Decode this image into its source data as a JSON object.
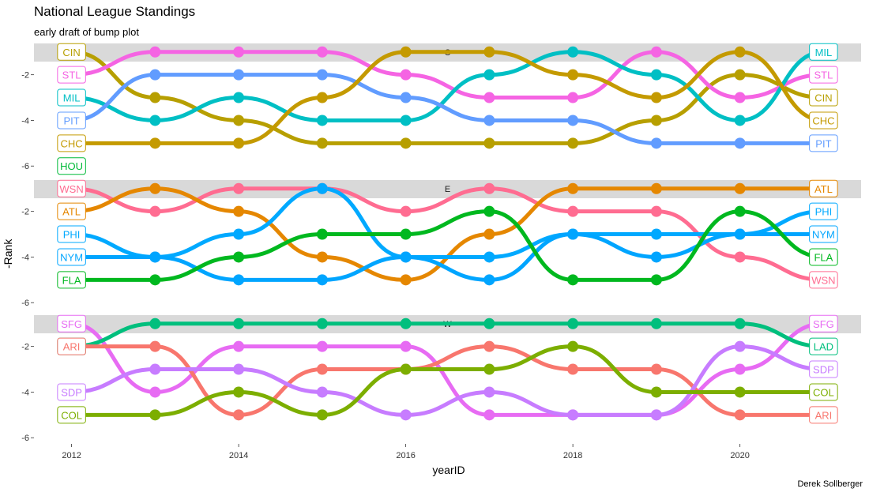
{
  "title": "National League Standings",
  "subtitle": "early draft of bump plot",
  "caption": "Derek Sollberger",
  "chart_data": {
    "type": "line",
    "xlabel": "yearID",
    "ylabel": "-Rank",
    "x": [
      2012,
      2013,
      2014,
      2015,
      2016,
      2017,
      2018,
      2019,
      2020,
      2021
    ],
    "x_ticks": [
      "2012",
      "2014",
      "2016",
      "2018",
      "2020"
    ],
    "y_ticks": [
      "-2",
      "-4",
      "-6"
    ],
    "ylim": [
      -6.2,
      -0.8
    ],
    "facets": [
      {
        "strip": "C",
        "series": [
          {
            "name": "CIN",
            "color": "#B79F00",
            "values": [
              -1,
              -3,
              -4,
              -5,
              -5,
              -5,
              -5,
              -4,
              -2,
              -3
            ]
          },
          {
            "name": "STL",
            "color": "#F564E3",
            "values": [
              -2,
              -1,
              -1,
              -1,
              -2,
              -3,
              -3,
              -1,
              -3,
              -2
            ]
          },
          {
            "name": "MIL",
            "color": "#00BFC4",
            "values": [
              -3,
              -4,
              -3,
              -4,
              -4,
              -2,
              -1,
              -2,
              -4,
              -1
            ]
          },
          {
            "name": "PIT",
            "color": "#619CFF",
            "values": [
              -4,
              -2,
              -2,
              -2,
              -3,
              -4,
              -4,
              -5,
              -5,
              -5
            ]
          },
          {
            "name": "CHC",
            "color": "#C49A00",
            "values": [
              -5,
              -5,
              -5,
              -3,
              -1,
              -1,
              -2,
              -3,
              -1,
              -4
            ]
          },
          {
            "name": "HOU",
            "color": "#00BA38",
            "values": [
              -6
            ]
          }
        ]
      },
      {
        "strip": "E",
        "series": [
          {
            "name": "WSN",
            "color": "#FF6C91",
            "values": [
              -1,
              -2,
              -1,
              -1,
              -2,
              -1,
              -2,
              -2,
              -4,
              -5
            ]
          },
          {
            "name": "ATL",
            "color": "#E58700",
            "values": [
              -2,
              -1,
              -2,
              -4,
              -5,
              -3,
              -1,
              -1,
              -1,
              -1
            ]
          },
          {
            "name": "PHI",
            "color": "#00A9FF",
            "values": [
              -3,
              -4,
              -3,
              -1,
              -4,
              -4,
              -3,
              -3,
              -3,
              -2
            ]
          },
          {
            "name": "NYM",
            "color": "#00A5FF",
            "values": [
              -4,
              -4,
              -5,
              -5,
              -4,
              -5,
              -3,
              -4,
              -3,
              -3
            ]
          },
          {
            "name": "FLA",
            "color": "#00B81F",
            "values": [
              -5,
              -5,
              -4,
              -3,
              -3,
              -2,
              -5,
              -5,
              -2,
              -4
            ]
          }
        ]
      },
      {
        "strip": "W",
        "series": [
          {
            "name": "SFG",
            "color": "#E76BF3",
            "values": [
              -1,
              -4,
              -2,
              -2,
              -2,
              -5,
              -5,
              -5,
              -3,
              -1
            ]
          },
          {
            "name": "LAD",
            "color": "#00BF7D",
            "values": [
              -2,
              -1,
              -1,
              -1,
              -1,
              -1,
              -1,
              -1,
              -1,
              -2
            ]
          },
          {
            "name": "ARI",
            "color": "#F8766D",
            "values": [
              -2,
              -2,
              -5,
              -3,
              -3,
              -2,
              -3,
              -3,
              -5,
              -5
            ]
          },
          {
            "name": "SDP",
            "color": "#C77CFF",
            "values": [
              -4,
              -3,
              -3,
              -4,
              -5,
              -4,
              -5,
              -5,
              -2,
              -3
            ]
          },
          {
            "name": "COL",
            "color": "#7CAE00",
            "values": [
              -5,
              -5,
              -4,
              -5,
              -3,
              -3,
              -2,
              -4,
              -4,
              -4
            ]
          }
        ]
      }
    ]
  }
}
